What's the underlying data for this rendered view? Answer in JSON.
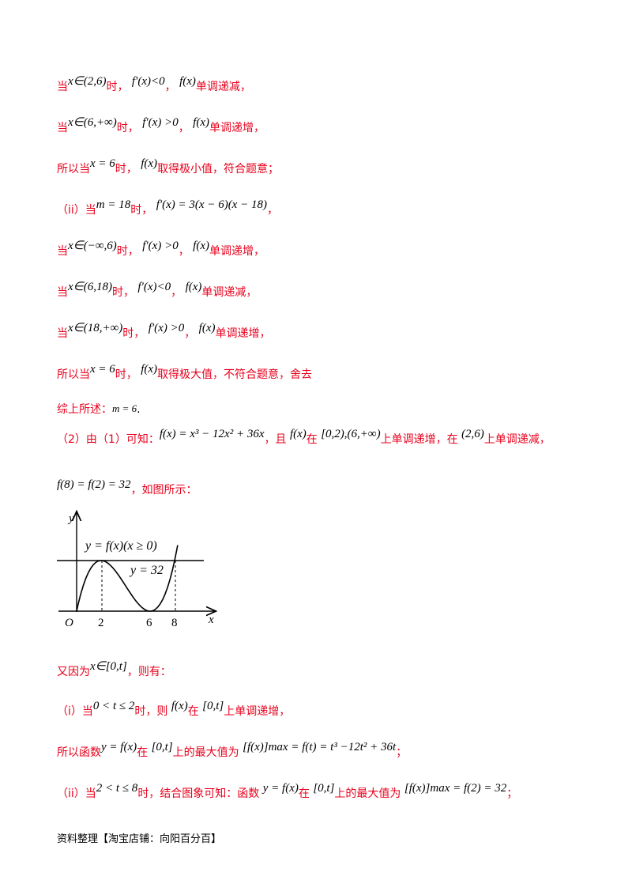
{
  "lines": [
    {
      "a": "当",
      "m1": "x∈(2,6)",
      "b": "时，",
      "m2": "f′(x)<0",
      "c": "，",
      "m3": "f(x)",
      "d": "单调递减，"
    },
    {
      "a": "当",
      "m1": "x∈(6,+∞)",
      "b": "时，",
      "m2": "f′(x) >0",
      "c": "，",
      "m3": "f(x)",
      "d": "单调递增，"
    },
    {
      "a": "所以当",
      "m1": "x = 6",
      "b": "时，",
      "m2": "f(x)",
      "c": "取得极小值，符合题意；",
      "m3": "",
      "d": ""
    },
    {
      "a": "（ii）当",
      "m1": "m = 18",
      "b": "时，",
      "m2": "f′(x) = 3(x − 6)(x − 18)",
      "c": "，",
      "m3": "",
      "d": ""
    },
    {
      "a": "当",
      "m1": "x∈(−∞,6)",
      "b": "时，",
      "m2": "f′(x) >0",
      "c": "，",
      "m3": "f(x)",
      "d": "单调递增，"
    },
    {
      "a": "当",
      "m1": "x∈(6,18)",
      "b": "时，",
      "m2": "f′(x)<0",
      "c": "，",
      "m3": "f(x)",
      "d": "单调递减，"
    },
    {
      "a": "当",
      "m1": "x∈(18,+∞)",
      "b": "时，",
      "m2": "f′(x) >0",
      "c": "，",
      "m3": "f(x)",
      "d": "单调递增，"
    },
    {
      "a": "所以当",
      "m1": "x = 6",
      "b": "时，",
      "m2": "f(x)",
      "c": "取得极大值，不符合题意，舍去",
      "m3": "",
      "d": ""
    }
  ],
  "summary": {
    "label": "综上所述：",
    "math": "m = 6",
    "end": "."
  },
  "part2": {
    "a": "（2）由（1）可知：",
    "m1": "f(x) = x³ − 12x² + 36x",
    "b": "，且",
    "m2": "f(x)",
    "c": "在",
    "m3": "[0,2),(6,+∞)",
    "d": "上单调递增，在",
    "m4": "(2,6)",
    "e": "上单调递减，"
  },
  "part2b": {
    "m1": "f(8) = f(2) = 32",
    "a": "，如图所示："
  },
  "graph": {
    "curve_label": "y = f(x)(x ≥ 0)",
    "line_label": "y = 32",
    "y_axis": "y",
    "x_axis": "x",
    "origin": "O",
    "ticks": [
      "2",
      "6",
      "8"
    ]
  },
  "part3": {
    "a": "又因为",
    "m1": "x∈[0,t]",
    "b": "，则有："
  },
  "case1": {
    "a": "（i）当",
    "m1": "0 < t ≤ 2",
    "b": "时，则",
    "m2": "f(x)",
    "c": "在",
    "m3": "[0,t]",
    "d": "上单调递增，"
  },
  "case1b": {
    "a": "所以函数",
    "m1": "y = f(x)",
    "b": "在",
    "m2": "[0,t]",
    "c": "上的最大值为",
    "m3": "[f(x)]max = f(t) = t³ −12t² + 36t",
    "d": "；"
  },
  "case2": {
    "a": "（ii）当",
    "m1": "2 < t ≤ 8",
    "b": "时，结合图象可知：函数",
    "m2": "y = f(x)",
    "c": "在",
    "m3": "[0,t]",
    "d": "上的最大值为",
    "m4": "[f(x)]max = f(2) = 32",
    "e": "；"
  },
  "footer": "资料整理【淘宝店铺：向阳百分百】",
  "chart_data": {
    "type": "line",
    "series": [
      {
        "x": [
          0,
          1,
          2,
          3,
          4,
          5,
          6,
          7,
          8,
          8.1
        ],
        "values": [
          0,
          25,
          32,
          27,
          16,
          5,
          0,
          7,
          32,
          36
        ]
      }
    ],
    "reference_lines": [
      {
        "y": 32
      }
    ],
    "xticks": [
      "2",
      "6",
      "8"
    ]
  }
}
